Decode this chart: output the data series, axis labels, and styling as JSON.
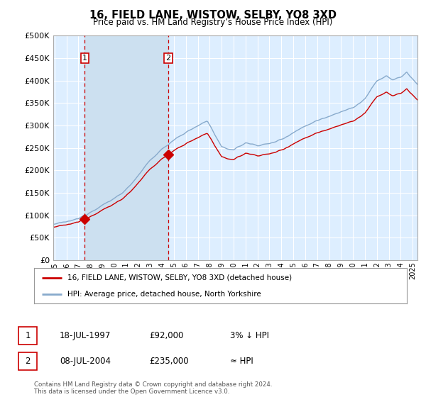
{
  "title": "16, FIELD LANE, WISTOW, SELBY, YO8 3XD",
  "subtitle": "Price paid vs. HM Land Registry’s House Price Index (HPI)",
  "ylim": [
    0,
    500000
  ],
  "yticks": [
    0,
    50000,
    100000,
    150000,
    200000,
    250000,
    300000,
    350000,
    400000,
    450000,
    500000
  ],
  "ytick_labels": [
    "£0",
    "£50K",
    "£100K",
    "£150K",
    "£200K",
    "£250K",
    "£300K",
    "£350K",
    "£400K",
    "£450K",
    "£500K"
  ],
  "xlim_start": 1994.9,
  "xlim_end": 2025.4,
  "sale1_date": 1997.54,
  "sale1_price": 92000,
  "sale1_label": "1",
  "sale1_text": "18-JUL-1997",
  "sale1_amount": "£92,000",
  "sale1_hpi": "3% ↓ HPI",
  "sale2_date": 2004.54,
  "sale2_price": 235000,
  "sale2_label": "2",
  "sale2_text": "08-JUL-2004",
  "sale2_amount": "£235,000",
  "sale2_hpi": "≈ HPI",
  "line_color_red": "#cc0000",
  "line_color_blue": "#88aacc",
  "shade_color": "#cce0f0",
  "plot_bg": "#ddeeff",
  "grid_color": "#ffffff",
  "legend_line1": "16, FIELD LANE, WISTOW, SELBY, YO8 3XD (detached house)",
  "legend_line2": "HPI: Average price, detached house, North Yorkshire",
  "footnote": "Contains HM Land Registry data © Crown copyright and database right 2024.\nThis data is licensed under the Open Government Licence v3.0.",
  "xtick_years": [
    1995,
    1996,
    1997,
    1998,
    1999,
    2000,
    2001,
    2002,
    2003,
    2004,
    2005,
    2006,
    2007,
    2008,
    2009,
    2010,
    2011,
    2012,
    2013,
    2014,
    2015,
    2016,
    2017,
    2018,
    2019,
    2020,
    2021,
    2022,
    2023,
    2024,
    2025
  ]
}
